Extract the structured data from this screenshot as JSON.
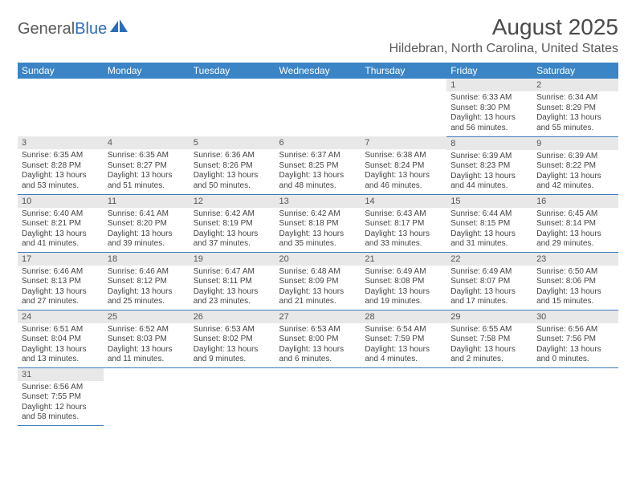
{
  "logo": {
    "part1": "General",
    "part2": "Blue"
  },
  "title": "August 2025",
  "location": "Hildebran, North Carolina, United States",
  "header_bg": "#3b84c6",
  "rule_color": "#3b7bbf",
  "daynum_bg": "#e8e8e8",
  "text_color": "#444444",
  "font_day": 11,
  "font_body": 10,
  "weekdays": [
    "Sunday",
    "Monday",
    "Tuesday",
    "Wednesday",
    "Thursday",
    "Friday",
    "Saturday"
  ],
  "weeks": [
    [
      null,
      null,
      null,
      null,
      null,
      {
        "d": "1",
        "sr": "6:33 AM",
        "ss": "8:30 PM",
        "dl": "13 hours and 56 minutes."
      },
      {
        "d": "2",
        "sr": "6:34 AM",
        "ss": "8:29 PM",
        "dl": "13 hours and 55 minutes."
      }
    ],
    [
      {
        "d": "3",
        "sr": "6:35 AM",
        "ss": "8:28 PM",
        "dl": "13 hours and 53 minutes."
      },
      {
        "d": "4",
        "sr": "6:35 AM",
        "ss": "8:27 PM",
        "dl": "13 hours and 51 minutes."
      },
      {
        "d": "5",
        "sr": "6:36 AM",
        "ss": "8:26 PM",
        "dl": "13 hours and 50 minutes."
      },
      {
        "d": "6",
        "sr": "6:37 AM",
        "ss": "8:25 PM",
        "dl": "13 hours and 48 minutes."
      },
      {
        "d": "7",
        "sr": "6:38 AM",
        "ss": "8:24 PM",
        "dl": "13 hours and 46 minutes."
      },
      {
        "d": "8",
        "sr": "6:39 AM",
        "ss": "8:23 PM",
        "dl": "13 hours and 44 minutes."
      },
      {
        "d": "9",
        "sr": "6:39 AM",
        "ss": "8:22 PM",
        "dl": "13 hours and 42 minutes."
      }
    ],
    [
      {
        "d": "10",
        "sr": "6:40 AM",
        "ss": "8:21 PM",
        "dl": "13 hours and 41 minutes."
      },
      {
        "d": "11",
        "sr": "6:41 AM",
        "ss": "8:20 PM",
        "dl": "13 hours and 39 minutes."
      },
      {
        "d": "12",
        "sr": "6:42 AM",
        "ss": "8:19 PM",
        "dl": "13 hours and 37 minutes."
      },
      {
        "d": "13",
        "sr": "6:42 AM",
        "ss": "8:18 PM",
        "dl": "13 hours and 35 minutes."
      },
      {
        "d": "14",
        "sr": "6:43 AM",
        "ss": "8:17 PM",
        "dl": "13 hours and 33 minutes."
      },
      {
        "d": "15",
        "sr": "6:44 AM",
        "ss": "8:15 PM",
        "dl": "13 hours and 31 minutes."
      },
      {
        "d": "16",
        "sr": "6:45 AM",
        "ss": "8:14 PM",
        "dl": "13 hours and 29 minutes."
      }
    ],
    [
      {
        "d": "17",
        "sr": "6:46 AM",
        "ss": "8:13 PM",
        "dl": "13 hours and 27 minutes."
      },
      {
        "d": "18",
        "sr": "6:46 AM",
        "ss": "8:12 PM",
        "dl": "13 hours and 25 minutes."
      },
      {
        "d": "19",
        "sr": "6:47 AM",
        "ss": "8:11 PM",
        "dl": "13 hours and 23 minutes."
      },
      {
        "d": "20",
        "sr": "6:48 AM",
        "ss": "8:09 PM",
        "dl": "13 hours and 21 minutes."
      },
      {
        "d": "21",
        "sr": "6:49 AM",
        "ss": "8:08 PM",
        "dl": "13 hours and 19 minutes."
      },
      {
        "d": "22",
        "sr": "6:49 AM",
        "ss": "8:07 PM",
        "dl": "13 hours and 17 minutes."
      },
      {
        "d": "23",
        "sr": "6:50 AM",
        "ss": "8:06 PM",
        "dl": "13 hours and 15 minutes."
      }
    ],
    [
      {
        "d": "24",
        "sr": "6:51 AM",
        "ss": "8:04 PM",
        "dl": "13 hours and 13 minutes."
      },
      {
        "d": "25",
        "sr": "6:52 AM",
        "ss": "8:03 PM",
        "dl": "13 hours and 11 minutes."
      },
      {
        "d": "26",
        "sr": "6:53 AM",
        "ss": "8:02 PM",
        "dl": "13 hours and 9 minutes."
      },
      {
        "d": "27",
        "sr": "6:53 AM",
        "ss": "8:00 PM",
        "dl": "13 hours and 6 minutes."
      },
      {
        "d": "28",
        "sr": "6:54 AM",
        "ss": "7:59 PM",
        "dl": "13 hours and 4 minutes."
      },
      {
        "d": "29",
        "sr": "6:55 AM",
        "ss": "7:58 PM",
        "dl": "13 hours and 2 minutes."
      },
      {
        "d": "30",
        "sr": "6:56 AM",
        "ss": "7:56 PM",
        "dl": "13 hours and 0 minutes."
      }
    ],
    [
      {
        "d": "31",
        "sr": "6:56 AM",
        "ss": "7:55 PM",
        "dl": "12 hours and 58 minutes."
      },
      null,
      null,
      null,
      null,
      null,
      null
    ]
  ],
  "labels": {
    "sunrise": "Sunrise:",
    "sunset": "Sunset:",
    "daylight": "Daylight:"
  }
}
